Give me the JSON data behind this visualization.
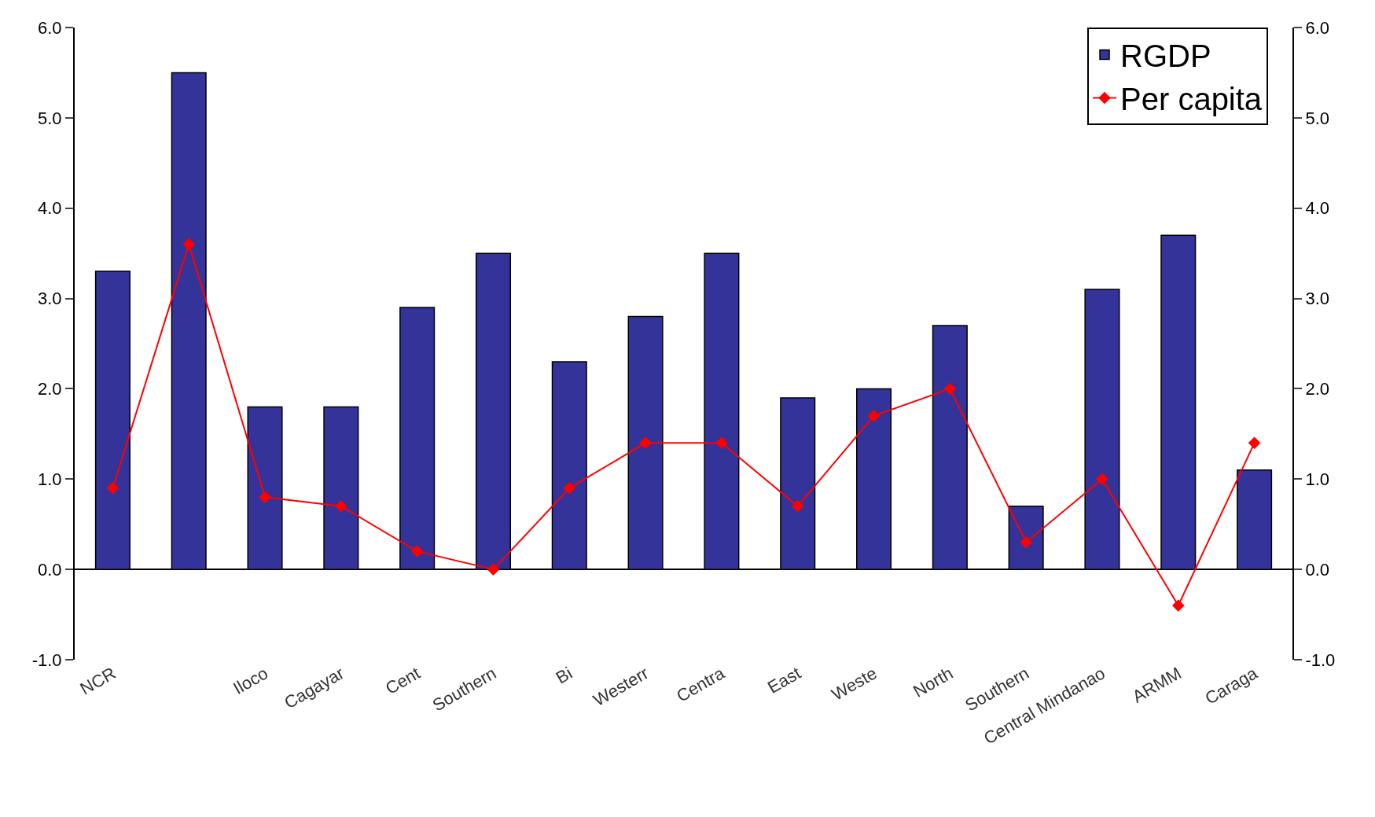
{
  "chart_data": {
    "type": "bar",
    "categories": [
      "NCR",
      null,
      "Iloco",
      "Cagayar",
      "Cent",
      "Southern",
      "Bi",
      "Westerr",
      "Centra",
      "East",
      "Weste",
      "North",
      "Southern",
      "Central Mindanao",
      "ARMM",
      "Caraga"
    ],
    "series": [
      {
        "name": "RGDP",
        "color": "#333399",
        "values": [
          3.3,
          5.5,
          1.8,
          1.8,
          2.9,
          3.5,
          2.3,
          2.8,
          3.5,
          1.9,
          2.0,
          2.7,
          0.7,
          3.1,
          3.7,
          1.1
        ]
      },
      {
        "name": "Per capita",
        "type": "line",
        "axis": "y2",
        "color": "#ff0000",
        "marker": "diamond",
        "values": [
          0.9,
          3.6,
          0.8,
          0.7,
          0.2,
          0.0,
          0.9,
          1.4,
          1.4,
          0.7,
          1.7,
          2.0,
          0.3,
          1.0,
          -0.4,
          1.4
        ]
      }
    ],
    "ylim": [
      -1,
      6
    ],
    "yticks": [
      {
        "value": -1,
        "label": "-1.0"
      },
      {
        "value": 0,
        "label": "0.0"
      },
      {
        "value": 1,
        "label": "1.0"
      },
      {
        "value": 2,
        "label": "2.0"
      },
      {
        "value": 3,
        "label": "3.0"
      },
      {
        "value": 4,
        "label": "4.0"
      },
      {
        "value": 5,
        "label": "5.0"
      },
      {
        "value": 6,
        "label": "6.0"
      }
    ],
    "y2lim": [
      -1,
      6
    ],
    "y2ticks": [
      {
        "value": -1,
        "label": "-1.0"
      },
      {
        "value": 0,
        "label": "0.0"
      },
      {
        "value": 1,
        "label": "1.0"
      },
      {
        "value": 2,
        "label": "2.0"
      },
      {
        "value": 3,
        "label": "3.0"
      },
      {
        "value": 4,
        "label": "4.0"
      },
      {
        "value": 5,
        "label": "5.0"
      },
      {
        "value": 6,
        "label": "6.0"
      }
    ],
    "legend": "top right"
  }
}
